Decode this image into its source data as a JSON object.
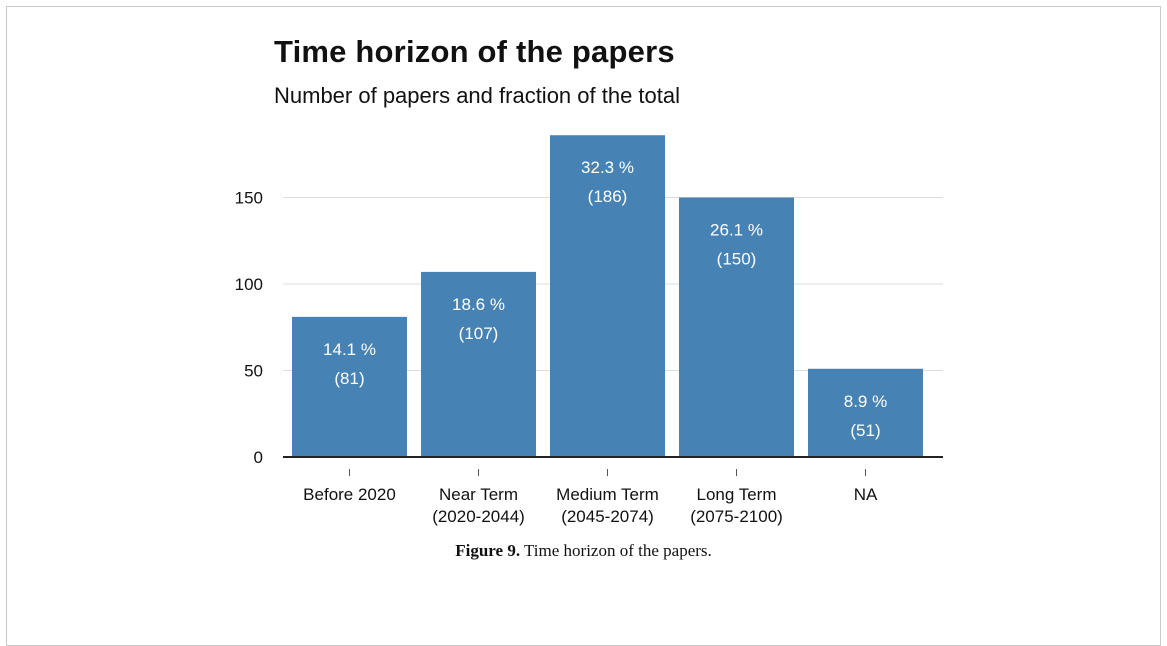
{
  "chart_data": {
    "type": "bar",
    "title": "Time horizon of the papers",
    "subtitle": "Number of papers and fraction of the total",
    "categories": [
      [
        "Before 2020"
      ],
      [
        "Near Term",
        "(2020-2044)"
      ],
      [
        "Medium Term",
        "(2045-2074)"
      ],
      [
        "Long Term",
        "(2075-2100)"
      ],
      [
        "NA"
      ]
    ],
    "values": [
      81,
      107,
      186,
      150,
      51
    ],
    "percent_labels": [
      "14.1 %",
      "18.6 %",
      "32.3 %",
      "26.1 %",
      "8.9 %"
    ],
    "count_labels": [
      "(81)",
      "(107)",
      "(186)",
      "(150)",
      "(51)"
    ],
    "yticks": [
      0,
      50,
      100,
      150
    ],
    "ylim": [
      0,
      186
    ],
    "grid": true,
    "bar_color": "#4682b4",
    "xlabel": "",
    "ylabel": ""
  },
  "caption": {
    "label": "Figure 9.",
    "text": " Time horizon of the papers."
  }
}
